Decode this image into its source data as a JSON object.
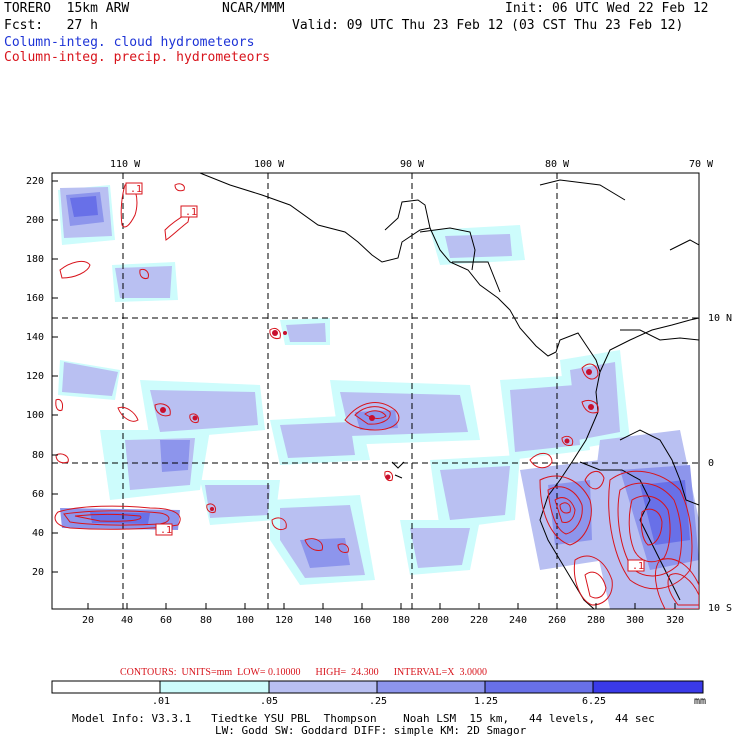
{
  "header": {
    "model": "TORERO  15km ARW",
    "org": "NCAR/MMM",
    "init": "Init: 06 UTC Wed 22 Feb 12",
    "fcst": "Fcst:   27 h",
    "valid": "Valid: 09 UTC Thu 23 Feb 12 (03 CST Thu 23 Feb 12)",
    "field_cloud": "Column-integ. cloud hydrometeors",
    "field_precip": "Column-integ. precip. hydrometeors"
  },
  "colors": {
    "cloud": "#1d33d6",
    "precip": "#d8141c",
    "coast": "#000000",
    "shade1": "#cdfcfc",
    "shade2": "#b9c0f2",
    "shade3": "#8d95ec",
    "shade4": "#6870e8",
    "shade5": "#3a3ae8"
  },
  "map": {
    "lon_labels": [
      "110 W",
      "100 W",
      "90 W",
      "80 W",
      "70 W"
    ],
    "lat_labels": [
      "10 N",
      "0",
      "10 S"
    ],
    "y_ticks": [
      "220",
      "200",
      "180",
      "160",
      "140",
      "120",
      "100",
      "80",
      "60",
      "40",
      "20"
    ],
    "x_ticks": [
      "20",
      "40",
      "60",
      "80",
      "100",
      "120",
      "140",
      "160",
      "180",
      "200",
      "220",
      "240",
      "260",
      "280",
      "300",
      "320"
    ],
    "contour_labels": [
      ".1",
      ".1",
      ".1",
      ".1"
    ]
  },
  "contours_line": {
    "label": "CONTOURS:  UNITS=mm  LOW= 0.10000",
    "high": "HIGH=  24.300",
    "interval": "INTERVAL=X  3.0000"
  },
  "colorbar": {
    "labels": [
      ".01",
      ".05",
      ".25",
      "1.25",
      "6.25",
      "mm"
    ],
    "colors": [
      "#ffffff",
      "#cdfcfc",
      "#b9c0f2",
      "#8d95ec",
      "#6870e8",
      "#3a3ae8"
    ]
  },
  "footer": {
    "line1": "Model Info: V3.3.1   Tiedtke YSU PBL  Thompson    Noah LSM  15 km,   44 levels,   44 sec",
    "line2": "LW: Godd SW: Goddard DIFF: simple KM: 2D Smagor"
  }
}
